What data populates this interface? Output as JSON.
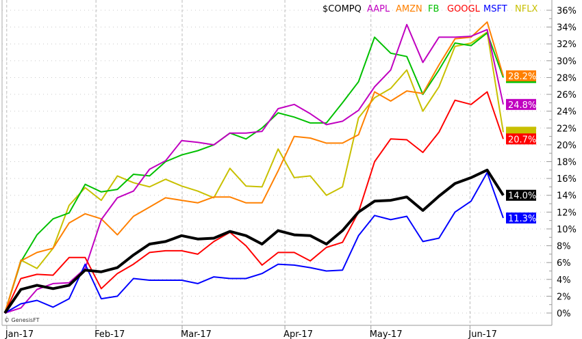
{
  "chart_data": {
    "type": "line",
    "title": "",
    "xlabel": "",
    "ylabel": "",
    "ylim": [
      0,
      36
    ],
    "y_ticks": [
      0,
      2,
      4,
      6,
      8,
      10,
      12,
      14,
      16,
      18,
      20,
      22,
      24,
      26,
      28,
      30,
      32,
      34,
      36
    ],
    "y_tick_suffix": "%",
    "x_range": [
      0,
      31
    ],
    "x_ticks": [
      {
        "label": "Jan-17",
        "pos": 0.12
      },
      {
        "label": "Feb-17",
        "pos": 5.67
      },
      {
        "label": "Mar-17",
        "pos": 11.03
      },
      {
        "label": "Apr-17",
        "pos": 17.42
      },
      {
        "label": "May-17",
        "pos": 22.77
      },
      {
        "label": "Jun-17",
        "pos": 28.93
      }
    ],
    "grid": true,
    "legend_position": "top-right",
    "series": [
      {
        "name": "$COMPQ",
        "color": "#000000",
        "bold": true,
        "end_label": "14.0%",
        "values": [
          0,
          2.8,
          3.3,
          2.9,
          3.3,
          5.1,
          4.9,
          5.4,
          6.9,
          8.2,
          8.5,
          9.2,
          8.8,
          8.9,
          9.7,
          9.2,
          8.2,
          9.8,
          9.3,
          9.2,
          8.2,
          9.8,
          12.0,
          13.3,
          13.4,
          13.8,
          12.2,
          13.9,
          15.4,
          16.1,
          17.0,
          14.0
        ]
      },
      {
        "name": "AAPL",
        "color": "#c000c0",
        "end_label": "24.8%",
        "values": [
          0,
          0.6,
          2.8,
          3.5,
          3.6,
          5.3,
          11.1,
          13.7,
          14.5,
          17.1,
          18.1,
          20.5,
          20.3,
          20.0,
          21.4,
          21.4,
          21.6,
          24.3,
          24.8,
          23.7,
          22.4,
          22.8,
          24.1,
          26.9,
          28.9,
          34.3,
          29.8,
          32.8,
          32.8,
          32.9,
          33.7,
          24.8
        ]
      },
      {
        "name": "AMZN",
        "color": "#ff8000",
        "end_label": "28.2%",
        "values": [
          0,
          6.2,
          7.2,
          7.7,
          10.7,
          11.8,
          11.2,
          9.3,
          11.5,
          12.6,
          13.7,
          13.4,
          13.1,
          13.8,
          13.8,
          13.1,
          13.1,
          16.9,
          21.0,
          20.8,
          20.2,
          20.2,
          21.2,
          26.3,
          25.2,
          26.4,
          26.1,
          29.5,
          32.6,
          32.8,
          34.6,
          28.2
        ]
      },
      {
        "name": "FB",
        "color": "#00c000",
        "values": [
          0,
          6.1,
          9.3,
          11.2,
          11.9,
          15.3,
          14.4,
          14.7,
          16.5,
          16.3,
          18.0,
          18.8,
          19.3,
          20.0,
          21.4,
          20.7,
          22.0,
          23.8,
          23.3,
          22.6,
          22.6,
          25.0,
          27.5,
          32.8,
          30.9,
          30.5,
          26.0,
          28.9,
          32.1,
          31.8,
          33.3,
          28.0
        ]
      },
      {
        "name": "GOOGL",
        "color": "#ff0000",
        "end_label": "20.7%",
        "values": [
          0,
          4.1,
          4.6,
          4.5,
          6.6,
          6.6,
          2.9,
          4.7,
          5.8,
          7.2,
          7.4,
          7.4,
          7.0,
          8.5,
          9.6,
          8.0,
          5.7,
          7.2,
          7.2,
          6.2,
          7.8,
          8.4,
          12.0,
          18.0,
          20.7,
          20.6,
          19.1,
          21.5,
          25.3,
          24.8,
          26.3,
          20.7
        ]
      },
      {
        "name": "MSFT",
        "color": "#0000ff",
        "end_label": "11.3%",
        "values": [
          0,
          1.1,
          1.5,
          0.7,
          1.7,
          5.8,
          1.7,
          2.0,
          4.1,
          3.9,
          3.9,
          3.9,
          3.5,
          4.3,
          4.1,
          4.1,
          4.7,
          5.8,
          5.7,
          5.4,
          5.0,
          5.1,
          9.2,
          11.6,
          11.1,
          11.5,
          8.5,
          8.9,
          12.0,
          13.3,
          16.7,
          11.3
        ]
      },
      {
        "name": "NFLX",
        "color": "#c8c000",
        "values": [
          0,
          6.3,
          5.3,
          7.7,
          12.8,
          14.9,
          13.4,
          16.3,
          15.5,
          15.0,
          15.9,
          15.1,
          14.5,
          13.7,
          17.2,
          15.1,
          15.0,
          19.5,
          16.1,
          16.3,
          14.0,
          15.0,
          23.2,
          25.6,
          26.7,
          28.9,
          24.0,
          26.9,
          31.7,
          32.1,
          33.4,
          21.5
        ]
      }
    ],
    "watermark": "© GenesisFT"
  }
}
